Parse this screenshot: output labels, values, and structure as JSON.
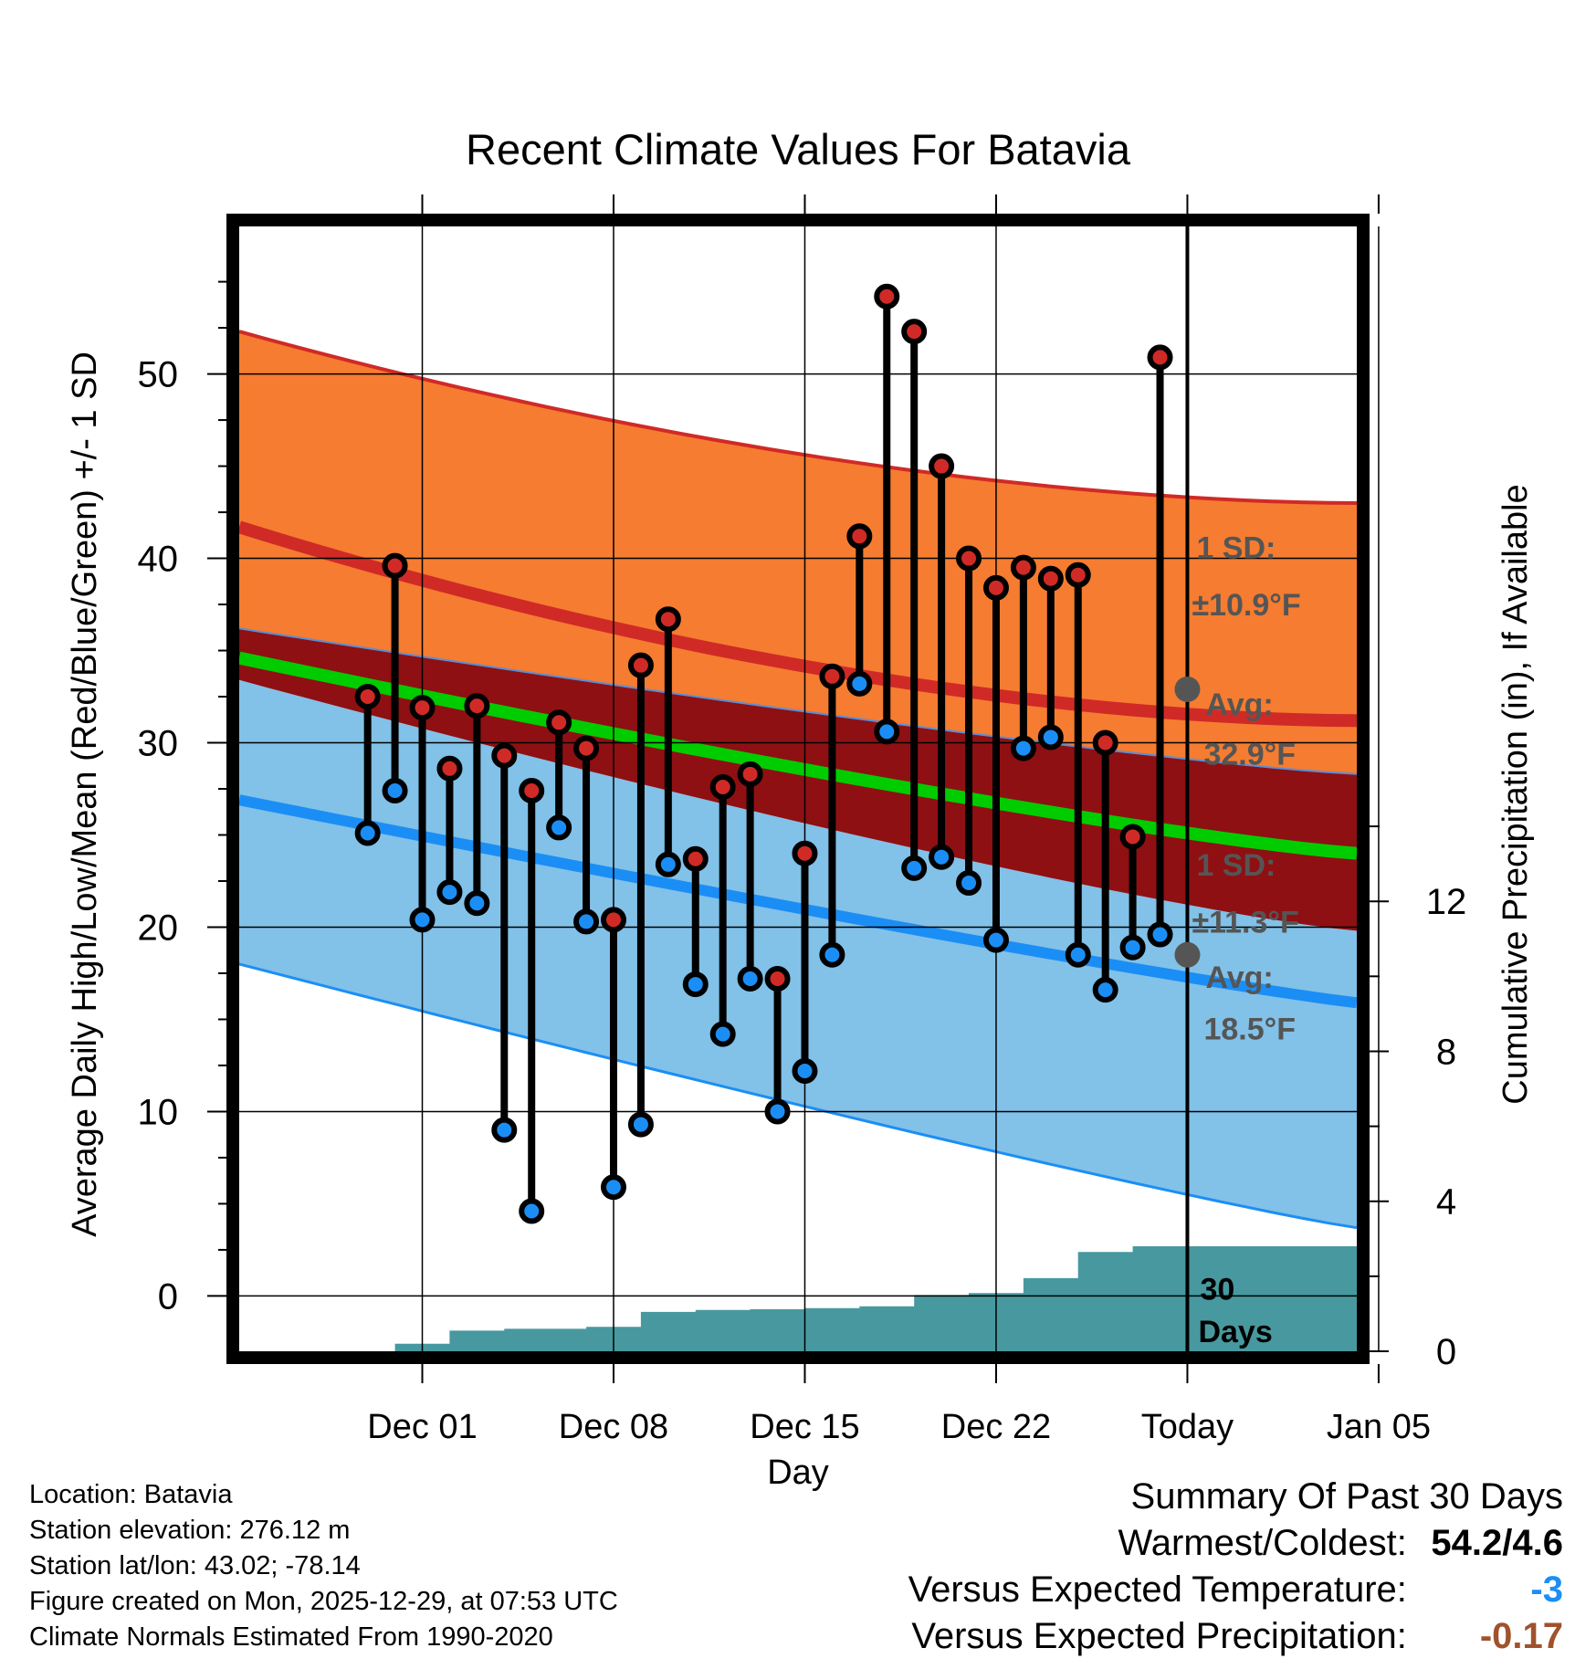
{
  "chart_data": {
    "type": "range-bar",
    "title": "Recent Climate Values For Batavia",
    "xlabel": "Day",
    "ylabel_left": "Average Daily High/Low/Mean (Red/Blue/Green) +/- 1 SD",
    "ylabel_right": "Cumulative Precipitation (in), If Available",
    "x_range_days": [
      -34.7,
      6.2
    ],
    "ylim": [
      -3,
      58
    ],
    "y2lim": [
      0,
      30
    ],
    "x_ticks": [
      {
        "day": -28,
        "label": "Dec 01"
      },
      {
        "day": -21,
        "label": "Dec 08"
      },
      {
        "day": -14,
        "label": "Dec 15"
      },
      {
        "day": -7,
        "label": "Dec 22"
      },
      {
        "day": 0,
        "label": "Today"
      },
      {
        "day": 7,
        "label": "Jan 05"
      }
    ],
    "y_ticks": [
      0,
      10,
      20,
      30,
      40,
      50
    ],
    "y2_ticks": [
      0,
      4,
      8,
      12
    ],
    "daily": {
      "day": [
        -30,
        -29,
        -28,
        -27,
        -26,
        -25,
        -24,
        -23,
        -22,
        -21,
        -20,
        -19,
        -18,
        -17,
        -16,
        -15,
        -14,
        -13,
        -12,
        -11,
        -10,
        -9,
        -8,
        -7,
        -6,
        -5,
        -4,
        -3,
        -2,
        -1
      ],
      "high": [
        32.5,
        39.6,
        31.9,
        28.6,
        32.0,
        29.3,
        27.4,
        31.1,
        29.7,
        20.4,
        34.2,
        36.7,
        23.7,
        27.6,
        28.3,
        17.2,
        24.0,
        33.6,
        41.2,
        54.2,
        52.3,
        45.0,
        40.0,
        38.4,
        39.5,
        38.9,
        39.1,
        30.0,
        24.9,
        50.9
      ],
      "low": [
        25.1,
        27.4,
        20.4,
        21.9,
        21.3,
        9.0,
        4.6,
        25.4,
        20.3,
        5.9,
        9.3,
        23.4,
        16.9,
        14.2,
        17.2,
        10.0,
        12.2,
        18.5,
        33.2,
        30.6,
        23.2,
        23.8,
        22.4,
        19.3,
        29.7,
        30.3,
        18.5,
        16.6,
        18.9,
        19.6
      ]
    },
    "normals": {
      "high_avg": [
        41.7,
        31.2
      ],
      "high_sd_upper": [
        52.3,
        43.0
      ],
      "low_avg": [
        26.9,
        15.9
      ],
      "low_sd_lower": [
        18.0,
        3.7
      ],
      "mean_avg": [
        34.6,
        24.0
      ],
      "mean_band_upper": [
        36.2,
        28.3
      ],
      "mean_band_lower": [
        33.4,
        19.8
      ]
    },
    "precip_cumulative": {
      "day": [
        -34.7,
        -31,
        -30,
        -29,
        -28,
        -27,
        -26,
        -25,
        -24,
        -23,
        -22,
        -21,
        -20,
        -19,
        -18,
        -17,
        -16,
        -15,
        -14,
        -13,
        -12,
        -11,
        -10,
        -9,
        -8,
        -7,
        -6,
        -5,
        -4,
        -3,
        -2,
        -1,
        6.2
      ],
      "value": [
        0,
        0,
        0,
        0.2,
        0.2,
        0.55,
        0.55,
        0.6,
        0.6,
        0.6,
        0.65,
        0.65,
        1.05,
        1.05,
        1.1,
        1.1,
        1.12,
        1.12,
        1.15,
        1.15,
        1.2,
        1.2,
        1.5,
        1.5,
        1.55,
        1.55,
        1.95,
        1.95,
        2.65,
        2.65,
        2.8,
        2.8,
        2.8
      ]
    },
    "annotations": {
      "high_sd_label": "1 SD:",
      "high_sd_value": "±10.9°F",
      "high_avg_label": "Avg:",
      "high_avg_value": "32.9°F",
      "low_sd_label": "1 SD:",
      "low_sd_value": "±11.3°F",
      "low_avg_label": "Avg:",
      "low_avg_value": "18.5°F",
      "period_line1": "30",
      "period_line2": "Days",
      "today_high_avg": 32.9,
      "today_low_avg": 18.5
    },
    "colors": {
      "high_band": "#f57c30",
      "low_band": "#82c1e8",
      "mean_band": "#8e1013",
      "high_line": "#d02a27",
      "low_line": "#1b8ef5",
      "mean_line": "#00cc00",
      "precip": "#47999f",
      "high_dot": "#d02a27",
      "low_dot": "#1b8ef5",
      "annotation": "#555555"
    }
  },
  "info": {
    "location": "Location: Batavia",
    "elevation": "Station elevation: 276.12 m",
    "latlon": "Station lat/lon: 43.02; -78.14",
    "created": "Figure created on Mon, 2025-12-29, at 07:53 UTC",
    "normals": "Climate Normals Estimated From 1990-2020"
  },
  "summary": {
    "title": "Summary Of Past 30 Days",
    "warmest_label": "Warmest/Coldest:",
    "warmest_value": "54.2/4.6",
    "temp_label": "Versus Expected Temperature:",
    "temp_value": "-3",
    "temp_color": "#1b8ef5",
    "precip_label": "Versus Expected Precipitation:",
    "precip_value": "-0.17",
    "precip_color": "#a0522d"
  }
}
